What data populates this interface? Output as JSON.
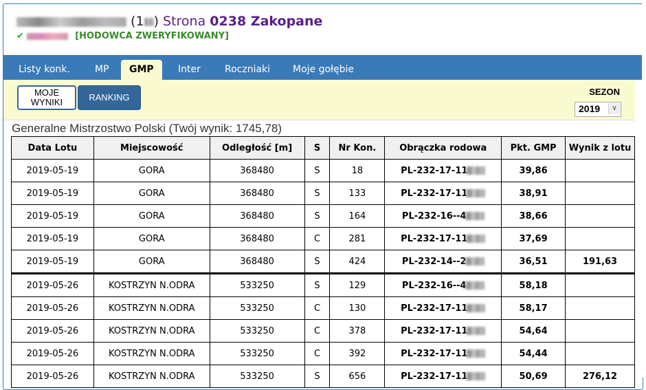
{
  "header": {
    "name_prefix": "(1",
    "name_suffix": ")",
    "strona_label": "Strona",
    "section": "0238 Zakopane",
    "verified": "[HODOWCA ZWERYFIKOWANY]"
  },
  "tabs": [
    {
      "label": "Listy konk."
    },
    {
      "label": "MP"
    },
    {
      "label": "GMP",
      "active": true
    },
    {
      "label": "Inter"
    },
    {
      "label": "Roczniaki"
    },
    {
      "label": "Moje gołębie"
    }
  ],
  "panel": {
    "my_results": "MOJE WYNIKI",
    "ranking": "RANKING",
    "season_label": "SEZON",
    "season_value": "2019"
  },
  "heading": "Generalne Mistrzostwo Polski (Twój wynik: 1745,78)",
  "table": {
    "columns": [
      "Data Lotu",
      "Miejscowość",
      "Odległość [m]",
      "S",
      "Nr Kon.",
      "Obrączka rodowa",
      "Pkt. GMP",
      "Wynik z lotu"
    ],
    "rows": [
      [
        "2019-05-19",
        "GORA",
        "368480",
        "S",
        "18",
        "PL-232-17-11",
        "39,86",
        ""
      ],
      [
        "2019-05-19",
        "GORA",
        "368480",
        "S",
        "133",
        "PL-232-17-11",
        "38,91",
        ""
      ],
      [
        "2019-05-19",
        "GORA",
        "368480",
        "S",
        "164",
        "PL-232-16--4",
        "38,66",
        ""
      ],
      [
        "2019-05-19",
        "GORA",
        "368480",
        "C",
        "281",
        "PL-232-17-11",
        "37,69",
        ""
      ],
      [
        "2019-05-19",
        "GORA",
        "368480",
        "S",
        "424",
        "PL-232-14--2",
        "36,51",
        "191,63"
      ],
      [
        "2019-05-26",
        "KOSTRZYN N.ODRA",
        "533250",
        "S",
        "129",
        "PL-232-16--4",
        "58,18",
        ""
      ],
      [
        "2019-05-26",
        "KOSTRZYN N.ODRA",
        "533250",
        "C",
        "130",
        "PL-232-17-11",
        "58,17",
        ""
      ],
      [
        "2019-05-26",
        "KOSTRZYN N.ODRA",
        "533250",
        "C",
        "378",
        "PL-232-17-11",
        "54,64",
        ""
      ],
      [
        "2019-05-26",
        "KOSTRZYN N.ODRA",
        "533250",
        "C",
        "392",
        "PL-232-17-11",
        "54,44",
        ""
      ],
      [
        "2019-05-26",
        "KOSTRZYN N.ODRA",
        "533250",
        "S",
        "656",
        "PL-232-17-11",
        "50,69",
        "276,12"
      ]
    ]
  }
}
